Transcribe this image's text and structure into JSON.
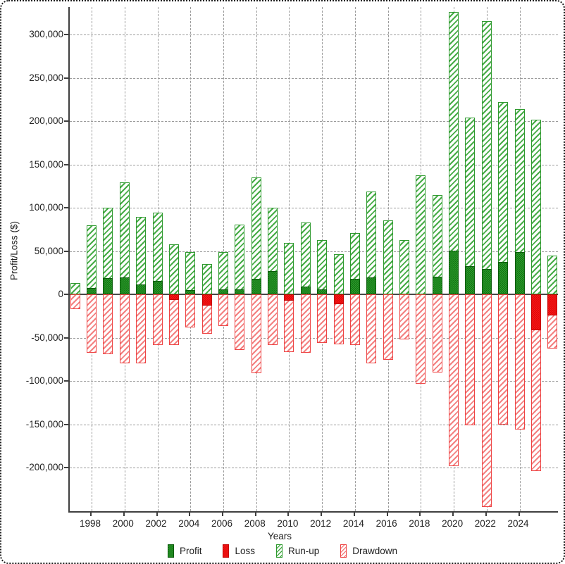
{
  "chart_data": {
    "type": "bar",
    "title": "",
    "xlabel": "Years",
    "ylabel": "Profit/Loss ($)",
    "years": [
      1997,
      1998,
      1999,
      2000,
      2001,
      2002,
      2003,
      2004,
      2005,
      2006,
      2007,
      2008,
      2009,
      2010,
      2011,
      2012,
      2013,
      2014,
      2015,
      2016,
      2017,
      2018,
      2019,
      2020,
      2021,
      2022,
      2023,
      2024,
      2025,
      2026
    ],
    "series": [
      {
        "name": "Profit",
        "style": "solid",
        "color": "#1E8C1E",
        "values": [
          0,
          8000,
          19000,
          20000,
          12000,
          16000,
          0,
          5000,
          0,
          6000,
          6000,
          18000,
          27000,
          0,
          9000,
          6000,
          0,
          18000,
          20000,
          0,
          0,
          0,
          21000,
          51000,
          33000,
          30000,
          38000,
          49000,
          0,
          0
        ]
      },
      {
        "name": "Loss",
        "style": "solid",
        "color": "#E81010",
        "values": [
          0,
          0,
          0,
          0,
          0,
          0,
          -6000,
          0,
          -13000,
          0,
          0,
          0,
          0,
          -7000,
          0,
          0,
          -11000,
          0,
          0,
          0,
          0,
          0,
          0,
          0,
          0,
          0,
          0,
          0,
          -41000,
          -24000
        ]
      },
      {
        "name": "Run-up",
        "style": "hatch",
        "color": "#3DA43D",
        "values": [
          13000,
          80000,
          100000,
          130000,
          90000,
          95000,
          58000,
          49000,
          35000,
          49000,
          81000,
          135000,
          100000,
          60000,
          83000,
          63000,
          47000,
          71000,
          119000,
          86000,
          63000,
          138000,
          115000,
          326000,
          204000,
          316000,
          222000,
          214000,
          202000,
          45000
        ]
      },
      {
        "name": "Drawdown",
        "style": "hatch",
        "color": "#F05050",
        "values": [
          -17000,
          -67000,
          -69000,
          -79000,
          -79000,
          -58000,
          -58000,
          -38000,
          -45000,
          -36000,
          -64000,
          -91000,
          -58000,
          -66000,
          -67000,
          -56000,
          -57000,
          -58000,
          -79000,
          -75000,
          -52000,
          -103000,
          -90000,
          -198000,
          -151000,
          -245000,
          -150000,
          -156000,
          -204000,
          -62000
        ]
      }
    ],
    "ylim": [
      -250000,
      332000
    ],
    "y_ticks": [
      {
        "value": 300000,
        "label": "300,000"
      },
      {
        "value": 250000,
        "label": "250,000"
      },
      {
        "value": 200000,
        "label": "200,000"
      },
      {
        "value": 150000,
        "label": "150,000"
      },
      {
        "value": 100000,
        "label": "100,000"
      },
      {
        "value": 50000,
        "label": "50,000"
      },
      {
        "value": 0,
        "label": "0"
      },
      {
        "value": -50000,
        "label": "-50,000"
      },
      {
        "value": -100000,
        "label": "-100,000"
      },
      {
        "value": -150000,
        "label": "-150,000"
      },
      {
        "value": -200000,
        "label": "-200,000"
      }
    ],
    "x_ticks": [
      1998,
      2000,
      2002,
      2004,
      2006,
      2008,
      2010,
      2012,
      2014,
      2016,
      2018,
      2020,
      2022,
      2024
    ],
    "grid": true,
    "legend_position": "bottom"
  },
  "legend": {
    "items": [
      {
        "label": "Profit"
      },
      {
        "label": "Loss"
      },
      {
        "label": "Run-up"
      },
      {
        "label": "Drawdown"
      }
    ]
  }
}
